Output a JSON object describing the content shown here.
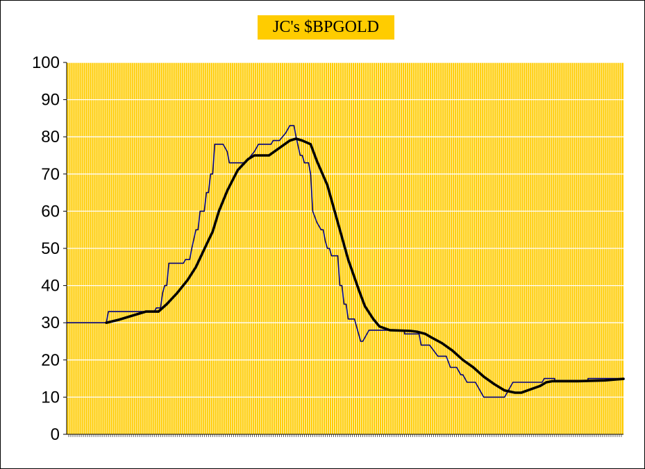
{
  "chart_data": {
    "type": "line",
    "title": "JC's $BPGOLD",
    "xlabel": "",
    "ylabel": "",
    "ylim": [
      0,
      100
    ],
    "yticks": [
      0,
      10,
      20,
      30,
      40,
      50,
      60,
      70,
      80,
      90,
      100
    ],
    "xlim": [
      0,
      267
    ],
    "grid": true,
    "legend": "none",
    "colors": {
      "background": "#FFCC00",
      "grid": "#FFFFFF",
      "title_bg": "#FFCC00",
      "raw_series": "#000080",
      "smooth_series": "#000000"
    },
    "series": [
      {
        "points": [
          [
            0,
            30
          ],
          [
            19,
            30
          ],
          [
            20,
            33
          ],
          [
            42,
            33
          ],
          [
            43,
            34
          ],
          [
            45,
            34
          ],
          [
            46,
            38
          ],
          [
            47,
            40
          ],
          [
            48,
            40
          ],
          [
            49,
            46
          ],
          [
            56,
            46
          ],
          [
            57,
            47
          ],
          [
            59,
            47
          ],
          [
            60,
            50
          ],
          [
            62,
            55
          ],
          [
            63,
            55
          ],
          [
            64,
            60
          ],
          [
            66,
            60
          ],
          [
            67,
            65
          ],
          [
            68,
            65
          ],
          [
            69,
            70
          ],
          [
            70,
            70
          ],
          [
            71,
            78
          ],
          [
            75,
            78
          ],
          [
            77,
            76
          ],
          [
            78,
            73
          ],
          [
            85,
            73
          ],
          [
            87,
            74
          ],
          [
            90,
            76
          ],
          [
            92,
            78
          ],
          [
            98,
            78
          ],
          [
            99,
            79
          ],
          [
            102,
            79
          ],
          [
            105,
            81
          ],
          [
            107,
            83
          ],
          [
            109,
            83
          ],
          [
            110,
            80
          ],
          [
            112,
            75
          ],
          [
            113,
            75
          ],
          [
            114,
            73
          ],
          [
            116,
            73
          ],
          [
            117,
            70
          ],
          [
            118,
            60
          ],
          [
            120,
            57
          ],
          [
            122,
            55
          ],
          [
            123,
            55
          ],
          [
            124,
            52
          ],
          [
            125,
            50
          ],
          [
            126,
            50
          ],
          [
            127,
            48
          ],
          [
            130,
            48
          ],
          [
            131,
            40
          ],
          [
            132,
            40
          ],
          [
            133,
            35
          ],
          [
            134,
            35
          ],
          [
            135,
            31
          ],
          [
            138,
            31
          ],
          [
            141,
            25
          ],
          [
            142,
            25
          ],
          [
            145,
            28
          ],
          [
            162,
            28
          ],
          [
            162,
            27
          ],
          [
            169,
            27
          ],
          [
            170,
            24
          ],
          [
            174,
            24
          ],
          [
            178,
            21
          ],
          [
            182,
            21
          ],
          [
            184,
            18
          ],
          [
            187,
            18
          ],
          [
            189,
            16
          ],
          [
            190,
            16
          ],
          [
            192,
            14
          ],
          [
            196,
            14
          ],
          [
            200,
            10
          ],
          [
            210,
            10
          ],
          [
            214,
            14
          ],
          [
            228,
            14
          ],
          [
            229,
            15
          ],
          [
            234,
            15
          ],
          [
            234,
            14.5
          ],
          [
            250,
            14.5
          ],
          [
            250,
            15
          ],
          [
            267,
            15
          ]
        ]
      },
      {
        "points": [
          [
            19,
            30
          ],
          [
            25,
            30.8
          ],
          [
            32,
            32
          ],
          [
            38,
            33
          ],
          [
            44,
            33
          ],
          [
            48,
            35
          ],
          [
            53,
            38
          ],
          [
            58,
            41.5
          ],
          [
            62,
            45
          ],
          [
            67,
            51
          ],
          [
            70,
            54.5
          ],
          [
            73,
            60
          ],
          [
            77,
            65.5
          ],
          [
            82,
            71
          ],
          [
            87,
            74
          ],
          [
            90,
            75
          ],
          [
            97,
            75
          ],
          [
            102,
            77
          ],
          [
            107,
            79
          ],
          [
            110,
            79.5
          ],
          [
            113,
            79
          ],
          [
            117,
            78
          ],
          [
            120,
            73.5
          ],
          [
            125,
            67
          ],
          [
            130,
            57
          ],
          [
            135,
            47
          ],
          [
            140,
            39
          ],
          [
            143,
            34.5
          ],
          [
            147,
            31
          ],
          [
            150,
            29
          ],
          [
            155,
            28
          ],
          [
            165,
            27.8
          ],
          [
            168,
            27.6
          ],
          [
            172,
            27
          ],
          [
            175,
            26
          ],
          [
            180,
            24.5
          ],
          [
            185,
            22.5
          ],
          [
            190,
            20
          ],
          [
            195,
            18
          ],
          [
            200,
            15.5
          ],
          [
            205,
            13.5
          ],
          [
            210,
            11.8
          ],
          [
            215,
            11.2
          ],
          [
            218,
            11.2
          ],
          [
            222,
            12
          ],
          [
            227,
            13
          ],
          [
            230,
            14
          ],
          [
            233,
            14.3
          ],
          [
            245,
            14.3
          ],
          [
            258,
            14.5
          ],
          [
            267,
            14.9
          ]
        ]
      }
    ]
  }
}
